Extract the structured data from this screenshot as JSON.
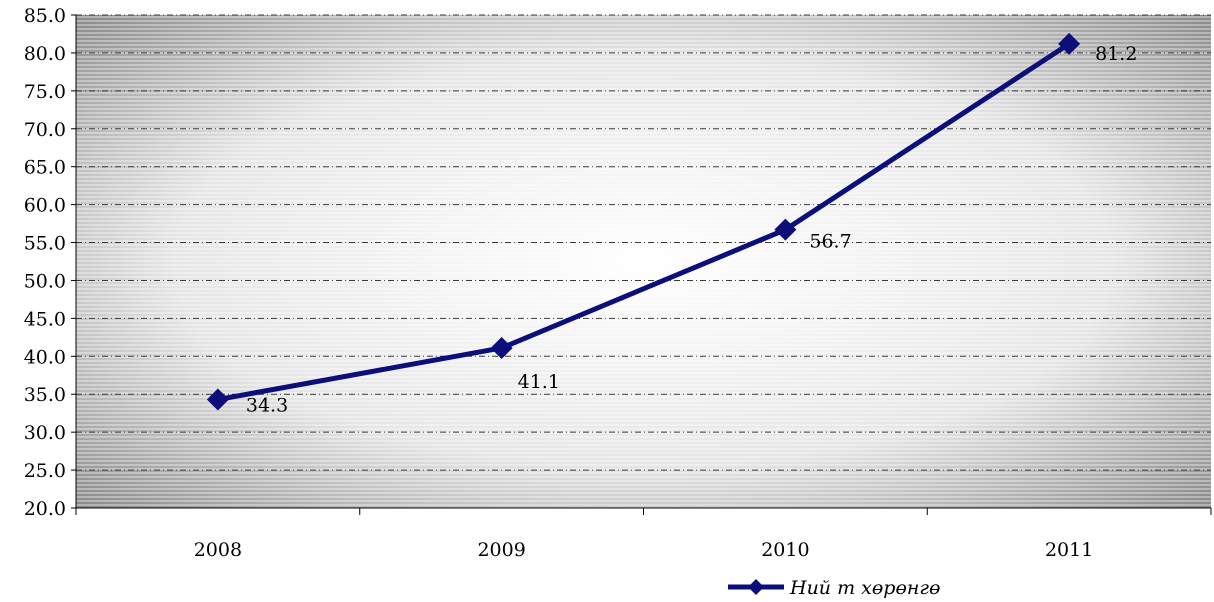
{
  "chart_data": {
    "type": "line",
    "categories": [
      "2008",
      "2009",
      "2010",
      "2011"
    ],
    "series": [
      {
        "name": "Ний т хөрөнгө",
        "values": [
          34.3,
          41.1,
          56.7,
          81.2
        ],
        "color": "#0c0f7a"
      }
    ],
    "data_labels": [
      "34.3",
      "41.1",
      "56.7",
      "81.2"
    ],
    "ylim": [
      20.0,
      85.0
    ],
    "y_ticks": [
      "20.0",
      "25.0",
      "30.0",
      "35.0",
      "40.0",
      "45.0",
      "50.0",
      "55.0",
      "60.0",
      "65.0",
      "70.0",
      "75.0",
      "80.0",
      "85.0"
    ],
    "grid": true,
    "legend": "bottom-right",
    "title": "",
    "xlabel": "",
    "ylabel": ""
  }
}
